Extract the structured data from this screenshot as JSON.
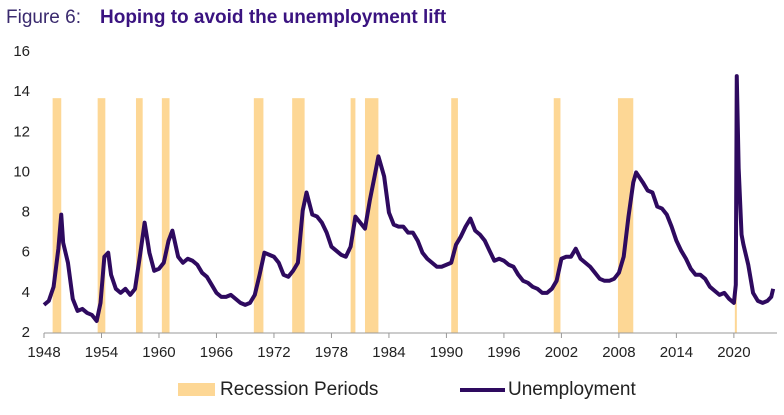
{
  "chart_data": {
    "type": "line",
    "title_prefix": "Figure 6:",
    "title": "Hoping to avoid the unemployment lift",
    "xlim": [
      1948,
      2024.5
    ],
    "xticks": [
      1948,
      1954,
      1960,
      1966,
      1972,
      1978,
      1984,
      1990,
      1996,
      2002,
      2008,
      2014,
      2020
    ],
    "ylim": [
      2,
      16
    ],
    "yticks": [
      2,
      4,
      6,
      8,
      10,
      12,
      14,
      16
    ],
    "recessions": {
      "name": "Recession Periods",
      "color": "#fdd795",
      "height": 13.7,
      "start": [
        1948.9,
        1953.6,
        1957.6,
        1960.3,
        1969.9,
        1973.9,
        1980.0,
        1981.5,
        1990.5,
        2001.2,
        2007.9,
        2020.1
      ],
      "end": [
        1949.8,
        1954.4,
        1958.3,
        1961.1,
        1970.9,
        1975.2,
        1980.5,
        1982.9,
        1991.2,
        2001.9,
        2009.5,
        2020.3
      ]
    },
    "series": [
      {
        "name": "Unemployment",
        "color": "#2e0a5f",
        "x": [
          1948.0,
          1948.5,
          1949.0,
          1949.5,
          1949.8,
          1950.0,
          1950.5,
          1951.0,
          1951.5,
          1952.0,
          1952.5,
          1953.0,
          1953.5,
          1953.9,
          1954.3,
          1954.7,
          1955.0,
          1955.5,
          1956.0,
          1956.5,
          1957.0,
          1957.5,
          1958.0,
          1958.5,
          1959.0,
          1959.5,
          1960.0,
          1960.5,
          1961.0,
          1961.4,
          1962.0,
          1962.5,
          1963.0,
          1963.5,
          1964.0,
          1964.5,
          1965.0,
          1965.5,
          1966.0,
          1966.5,
          1967.0,
          1967.5,
          1968.0,
          1968.5,
          1969.0,
          1969.5,
          1970.0,
          1970.5,
          1971.0,
          1971.5,
          1972.0,
          1972.5,
          1973.0,
          1973.5,
          1974.0,
          1974.5,
          1975.0,
          1975.4,
          1976.0,
          1976.5,
          1977.0,
          1977.5,
          1978.0,
          1978.5,
          1979.0,
          1979.5,
          1980.0,
          1980.5,
          1981.0,
          1981.5,
          1982.0,
          1982.5,
          1982.9,
          1983.5,
          1984.0,
          1984.5,
          1985.0,
          1985.5,
          1986.0,
          1986.5,
          1987.0,
          1987.5,
          1988.0,
          1988.5,
          1989.0,
          1989.5,
          1990.0,
          1990.5,
          1991.0,
          1991.5,
          1992.0,
          1992.5,
          1993.0,
          1993.5,
          1994.0,
          1994.5,
          1995.0,
          1995.5,
          1996.0,
          1996.5,
          1997.0,
          1997.5,
          1998.0,
          1998.5,
          1999.0,
          1999.5,
          2000.0,
          2000.5,
          2001.0,
          2001.5,
          2002.0,
          2002.5,
          2003.0,
          2003.5,
          2004.0,
          2004.5,
          2005.0,
          2005.5,
          2006.0,
          2006.5,
          2007.0,
          2007.5,
          2008.0,
          2008.5,
          2009.0,
          2009.5,
          2009.8,
          2010.5,
          2011.0,
          2011.5,
          2012.0,
          2012.5,
          2013.0,
          2013.5,
          2014.0,
          2014.5,
          2015.0,
          2015.5,
          2016.0,
          2016.5,
          2017.0,
          2017.5,
          2018.0,
          2018.5,
          2019.0,
          2019.5,
          2020.0,
          2020.2,
          2020.3,
          2020.5,
          2020.8,
          2021.0,
          2021.5,
          2022.0,
          2022.5,
          2023.0,
          2023.5,
          2023.9,
          2024.1
        ],
        "values": [
          3.4,
          3.6,
          4.3,
          6.2,
          7.9,
          6.5,
          5.5,
          3.7,
          3.1,
          3.2,
          3.0,
          2.9,
          2.6,
          3.5,
          5.8,
          6.0,
          4.9,
          4.2,
          4.0,
          4.2,
          3.9,
          4.2,
          5.8,
          7.5,
          6.0,
          5.1,
          5.2,
          5.5,
          6.6,
          7.1,
          5.8,
          5.5,
          5.7,
          5.6,
          5.4,
          5.0,
          4.8,
          4.4,
          4.0,
          3.8,
          3.8,
          3.9,
          3.7,
          3.5,
          3.4,
          3.5,
          3.9,
          4.9,
          6.0,
          5.9,
          5.8,
          5.5,
          4.9,
          4.8,
          5.1,
          5.5,
          8.1,
          9.0,
          7.9,
          7.8,
          7.5,
          7.0,
          6.3,
          6.1,
          5.9,
          5.8,
          6.3,
          7.8,
          7.5,
          7.2,
          8.6,
          9.8,
          10.8,
          9.8,
          8.0,
          7.4,
          7.3,
          7.3,
          7.0,
          7.0,
          6.6,
          6.0,
          5.7,
          5.5,
          5.3,
          5.3,
          5.4,
          5.5,
          6.4,
          6.8,
          7.3,
          7.7,
          7.1,
          6.9,
          6.6,
          6.1,
          5.6,
          5.7,
          5.6,
          5.4,
          5.3,
          4.9,
          4.6,
          4.5,
          4.3,
          4.2,
          4.0,
          4.0,
          4.2,
          4.6,
          5.7,
          5.8,
          5.8,
          6.2,
          5.7,
          5.5,
          5.3,
          5.0,
          4.7,
          4.6,
          4.6,
          4.7,
          5.0,
          5.8,
          7.8,
          9.5,
          10.0,
          9.5,
          9.1,
          9.0,
          8.3,
          8.2,
          7.9,
          7.3,
          6.6,
          6.1,
          5.7,
          5.2,
          4.9,
          4.9,
          4.7,
          4.3,
          4.1,
          3.9,
          4.0,
          3.7,
          3.5,
          4.4,
          14.8,
          10.2,
          6.9,
          6.4,
          5.4,
          4.0,
          3.6,
          3.5,
          3.6,
          3.8,
          4.2
        ]
      }
    ]
  }
}
